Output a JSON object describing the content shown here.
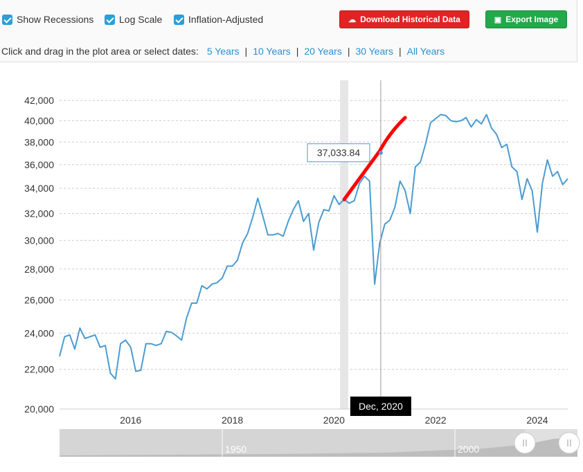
{
  "controls": {
    "show_recessions": {
      "label": "Show Recessions",
      "checked": true
    },
    "log_scale": {
      "label": "Log Scale",
      "checked": true
    },
    "inflation_adjusted": {
      "label": "Inflation-Adjusted",
      "checked": true
    },
    "download_button": {
      "label": "Download Historical Data",
      "icon": "cloud-download-icon",
      "color": "#e02424"
    },
    "export_button": {
      "label": "Export Image",
      "icon": "image-icon",
      "color": "#23a84a"
    }
  },
  "date_range": {
    "prompt": "Click and drag in the plot area or select dates:",
    "options": [
      "5 Years",
      "10 Years",
      "20 Years",
      "30 Years",
      "All Years"
    ]
  },
  "tooltip": {
    "value": "37,033.84",
    "date": "Dec, 2020"
  },
  "navigator": {
    "labels": [
      "1950",
      "2000"
    ]
  },
  "colors": {
    "line": "#4a9bd1",
    "annotation": "#ff0000",
    "recession": "#e6e6e6",
    "tooltip_border": "#4a9bd1",
    "date_label_bg": "#000000"
  },
  "chart_data": {
    "type": "line",
    "scale": "log",
    "ylim": [
      20000,
      42500
    ],
    "yticks": [
      "20,000",
      "22,000",
      "24,000",
      "26,000",
      "28,000",
      "30,000",
      "32,000",
      "34,000",
      "36,000",
      "38,000",
      "40,000",
      "42,000"
    ],
    "ytick_values": [
      20000,
      22000,
      24000,
      26000,
      28000,
      30000,
      32000,
      34000,
      36000,
      38000,
      40000,
      42000
    ],
    "xlim": [
      2014.6,
      2024.6
    ],
    "xticks": [
      "2016",
      "2018",
      "2020",
      "2022",
      "2024"
    ],
    "xtick_values": [
      2016,
      2018,
      2020,
      2022,
      2024
    ],
    "grid": true,
    "recession": {
      "start": 2020.12,
      "end": 2020.28
    },
    "crosshair_x": 2020.92,
    "series": [
      {
        "x": [
          2014.6,
          2014.7,
          2014.8,
          2014.9,
          2015.0,
          2015.1,
          2015.2,
          2015.3,
          2015.4,
          2015.5,
          2015.6,
          2015.7,
          2015.8,
          2015.9,
          2016.0,
          2016.1,
          2016.2,
          2016.3,
          2016.4,
          2016.5,
          2016.6,
          2016.7,
          2016.8,
          2016.9,
          2017.0,
          2017.1,
          2017.2,
          2017.3,
          2017.4,
          2017.5,
          2017.6,
          2017.7,
          2017.8,
          2017.9,
          2018.0,
          2018.1,
          2018.2,
          2018.3,
          2018.4,
          2018.5,
          2018.6,
          2018.7,
          2018.8,
          2018.9,
          2019.0,
          2019.1,
          2019.2,
          2019.3,
          2019.4,
          2019.5,
          2019.6,
          2019.7,
          2019.8,
          2019.9,
          2020.0,
          2020.1,
          2020.2,
          2020.3,
          2020.4,
          2020.5,
          2020.6,
          2020.7,
          2020.8,
          2020.9,
          2021.0,
          2021.1,
          2021.2,
          2021.3,
          2021.4,
          2021.5,
          2021.6,
          2021.7,
          2021.8,
          2021.9,
          2022.0,
          2022.1,
          2022.2,
          2022.3,
          2022.4,
          2022.5,
          2022.6,
          2022.7,
          2022.8,
          2022.9,
          2023.0,
          2023.1,
          2023.2,
          2023.3,
          2023.4,
          2023.5,
          2023.6,
          2023.7,
          2023.8,
          2023.9,
          2024.0,
          2024.1,
          2024.2,
          2024.3,
          2024.4,
          2024.5,
          2024.6
        ],
        "y": [
          22700,
          23800,
          23900,
          23100,
          24300,
          23700,
          23800,
          23900,
          23200,
          23300,
          21800,
          21500,
          23400,
          23600,
          23200,
          21900,
          21950,
          23400,
          23400,
          23300,
          23400,
          24100,
          24050,
          23850,
          23600,
          24900,
          25800,
          25800,
          26900,
          26700,
          27000,
          27100,
          27400,
          28200,
          28200,
          28600,
          29800,
          30500,
          31700,
          33200,
          31800,
          30400,
          30400,
          30500,
          30300,
          31400,
          32300,
          33000,
          31400,
          32000,
          29300,
          31300,
          32300,
          32200,
          33400,
          32700,
          33100,
          32800,
          33000,
          34400,
          35000,
          34600,
          27000,
          29800,
          31200,
          31500,
          32500,
          34600,
          33800,
          32000,
          35800,
          36200,
          37800,
          39800,
          40200,
          40600,
          40500,
          40000,
          39900,
          40000,
          40300,
          39400,
          40100,
          39700,
          40600,
          39300,
          38700,
          37500,
          37800,
          35800,
          35400,
          33100,
          34800,
          33800,
          30600,
          34400,
          36400,
          35000,
          35400,
          34300,
          34800
        ],
        "values_note": ""
      }
    ]
  }
}
